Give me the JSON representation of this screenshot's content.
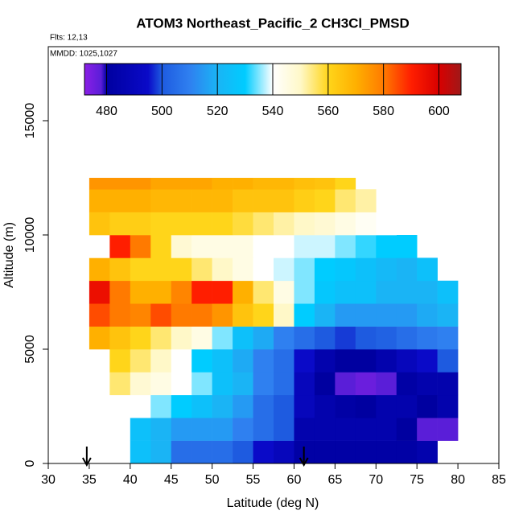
{
  "chart_data": {
    "type": "heatmap",
    "title": "ATOM3 Northeast_Pacific_2 CH3Cl_PMSD",
    "annotations": [
      "Flts: 12,13",
      "MMDD: 1025,1027"
    ],
    "xlabel": "Latitude (deg N)",
    "ylabel": "Altitude (m)",
    "xlim": [
      30,
      85
    ],
    "ylim": [
      0,
      18240
    ],
    "xticks": [
      30,
      35,
      40,
      45,
      50,
      55,
      60,
      65,
      70,
      75,
      80,
      85
    ],
    "yticks": [
      0,
      5000,
      10000,
      15000
    ],
    "x_edges": [
      35,
      37.5,
      40,
      42.5,
      45,
      47.5,
      50,
      52.5,
      55,
      57.5,
      60,
      62.5,
      65,
      67.5,
      70,
      72.5,
      75,
      77.5,
      80
    ],
    "y_edges": [
      0,
      1000,
      2000,
      3000,
      4000,
      5000,
      6000,
      7000,
      8000,
      9000,
      10000,
      11000,
      12000,
      12500
    ],
    "z": [
      [
        null,
        null,
        525,
        520,
        505,
        505,
        505,
        500,
        495,
        490,
        482,
        482,
        482,
        482,
        482,
        482,
        485,
        null
      ],
      [
        null,
        null,
        525,
        520,
        515,
        515,
        515,
        510,
        505,
        500,
        485,
        485,
        485,
        485,
        485,
        480,
        478,
        478
      ],
      [
        null,
        null,
        540,
        535,
        530,
        525,
        520,
        515,
        505,
        500,
        490,
        485,
        482,
        480,
        485,
        485,
        480,
        485
      ],
      [
        null,
        555,
        548,
        545,
        540,
        535,
        525,
        520,
        510,
        505,
        490,
        480,
        478,
        476,
        478,
        482,
        485,
        485
      ],
      [
        null,
        560,
        555,
        550,
        540,
        530,
        525,
        518,
        510,
        505,
        495,
        485,
        480,
        480,
        485,
        490,
        495,
        500
      ],
      [
        570,
        565,
        560,
        555,
        550,
        545,
        535,
        525,
        518,
        510,
        505,
        500,
        498,
        500,
        502,
        505,
        508,
        510
      ],
      [
        585,
        580,
        578,
        585,
        580,
        580,
        575,
        565,
        560,
        550,
        530,
        520,
        515,
        515,
        515,
        515,
        518,
        520
      ],
      [
        595,
        580,
        570,
        570,
        578,
        590,
        590,
        570,
        555,
        545,
        535,
        528,
        525,
        525,
        520,
        520,
        520,
        525
      ],
      [
        570,
        565,
        560,
        560,
        560,
        555,
        550,
        545,
        540,
        538,
        535,
        530,
        528,
        525,
        522,
        520,
        525,
        null
      ],
      [
        540,
        590,
        580,
        560,
        548,
        545,
        545,
        545,
        540,
        540,
        538,
        538,
        535,
        532,
        530,
        530,
        null,
        null
      ],
      [
        565,
        562,
        562,
        560,
        560,
        560,
        560,
        558,
        555,
        552,
        550,
        548,
        545,
        542,
        540,
        null,
        null,
        null
      ],
      [
        570,
        570,
        570,
        568,
        568,
        568,
        568,
        565,
        565,
        565,
        562,
        560,
        555,
        552,
        null,
        null,
        null,
        null
      ],
      [
        575,
        575,
        575,
        572,
        572,
        572,
        570,
        570,
        568,
        568,
        566,
        565,
        560,
        null,
        null,
        null,
        null,
        null
      ]
    ],
    "zlim": [
      472,
      608
    ],
    "zticks": [
      480,
      500,
      520,
      540,
      560,
      580,
      600
    ],
    "colorscale": [
      [
        472,
        "#8b1fe6"
      ],
      [
        478,
        "#5a1ed8"
      ],
      [
        480,
        "#0000a0"
      ],
      [
        495,
        "#0a0ac8"
      ],
      [
        500,
        "#1e5be0"
      ],
      [
        510,
        "#2f80f0"
      ],
      [
        520,
        "#1ab4f5"
      ],
      [
        530,
        "#00ccff"
      ],
      [
        540,
        "#ffffff"
      ],
      [
        550,
        "#fff8c8"
      ],
      [
        560,
        "#ffd51a"
      ],
      [
        570,
        "#ffb000"
      ],
      [
        580,
        "#ff7a00"
      ],
      [
        590,
        "#ff1e00"
      ],
      [
        600,
        "#d80000"
      ],
      [
        608,
        "#a01818"
      ]
    ],
    "arrows_lat": [
      34.7,
      61.2
    ]
  }
}
